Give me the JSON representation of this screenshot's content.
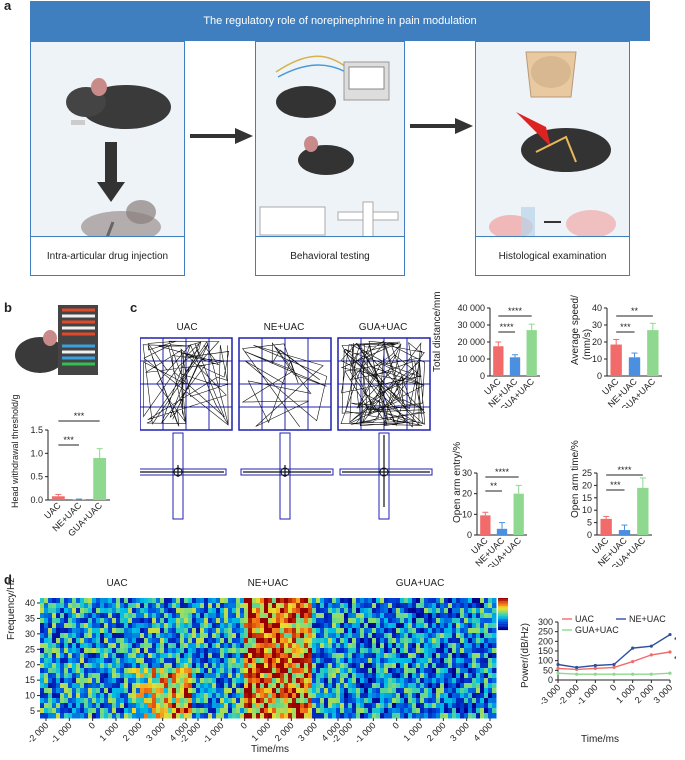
{
  "panel_labels": {
    "a": "a",
    "b": "b",
    "c": "c",
    "d": "d"
  },
  "panel_a": {
    "banner": "The regulatory role of norepinephrine in pain modulation",
    "steps": [
      {
        "caption": "Intra-articular drug injection"
      },
      {
        "caption": "Behavioral testing"
      },
      {
        "caption": "Histological examination"
      }
    ]
  },
  "panel_b": {
    "ylabel": "Head withdrawal threshold/g",
    "colors": [
      "#f26b6b",
      "#4a8fe0",
      "#8fd88f"
    ],
    "chart_data": {
      "type": "bar",
      "categories": [
        "UAC",
        "NE+UAC",
        "GUA+UAC"
      ],
      "values": [
        0.08,
        0.01,
        0.9
      ],
      "errors": [
        0.04,
        0.01,
        0.2
      ],
      "ylim": [
        0,
        1.5
      ],
      "yticks": [
        "0.0",
        "0.5",
        "1.0",
        "1.5"
      ],
      "ylabel": "Head withdrawal threshold/g",
      "significance": [
        "***",
        "***"
      ]
    }
  },
  "panel_c": {
    "track_titles": [
      "UAC",
      "NE+UAC",
      "GUA+UAC"
    ],
    "charts": [
      {
        "type": "bar",
        "ylabel": "Total distance/mm",
        "categories": [
          "UAC",
          "NE+UAC",
          "GUA+UAC"
        ],
        "values": [
          17500,
          11000,
          27000
        ],
        "errors": [
          2500,
          1500,
          3500
        ],
        "ylim": [
          0,
          40000
        ],
        "yticks": [
          "0",
          "10 000",
          "20 000",
          "30 000",
          "40 000"
        ],
        "significance": [
          "****",
          "****"
        ]
      },
      {
        "type": "bar",
        "ylabel": "Average speed/ (mm/s)",
        "categories": [
          "UAC",
          "NE+UAC",
          "GUA+UAC"
        ],
        "values": [
          18.5,
          11,
          27
        ],
        "errors": [
          3,
          2.5,
          4
        ],
        "ylim": [
          0,
          40
        ],
        "yticks": [
          "0",
          "10",
          "20",
          "30",
          "40"
        ],
        "significance": [
          "***",
          "**"
        ]
      },
      {
        "type": "bar",
        "ylabel": "Open arm entry/%",
        "categories": [
          "UAC",
          "NE+UAC",
          "GUA+UAC"
        ],
        "values": [
          9.5,
          3,
          20
        ],
        "errors": [
          1.5,
          3,
          4
        ],
        "ylim": [
          0,
          30
        ],
        "yticks": [
          "0",
          "10",
          "20",
          "30"
        ],
        "significance": [
          "**",
          "****"
        ]
      },
      {
        "type": "bar",
        "ylabel": "Open arm time/%",
        "categories": [
          "UAC",
          "NE+UAC",
          "GUA+UAC"
        ],
        "values": [
          6.5,
          2,
          19
        ],
        "errors": [
          1,
          2,
          4
        ],
        "ylim": [
          0,
          25
        ],
        "yticks": [
          "0",
          "5",
          "10",
          "15",
          "20",
          "25"
        ],
        "significance": [
          "***",
          "****"
        ]
      }
    ]
  },
  "panel_d": {
    "heatmap_titles": [
      "UAC",
      "NE+UAC",
      "GUA+UAC"
    ],
    "ylabel": "Frequency/Hz",
    "yticks": [
      "5",
      "10",
      "15",
      "20",
      "25",
      "30",
      "35",
      "40"
    ],
    "xticks": [
      "-2 000",
      "-1 000",
      "0",
      "1 000",
      "2 000",
      "3 000",
      "4 000"
    ],
    "xlabel": "Time/ms",
    "line_chart": {
      "type": "line",
      "ylabel": "Power/(dB/Hz)",
      "xlabel": "Time/ms",
      "x": [
        -3000,
        -2000,
        -1000,
        0,
        1000,
        2000,
        3000
      ],
      "xticks": [
        "-3 000",
        "-2 000",
        "-1 000",
        "0",
        "1 000",
        "2 000",
        "3 000"
      ],
      "yticks": [
        "0",
        "50",
        "100",
        "150",
        "200",
        "250",
        "300"
      ],
      "ylim": [
        0,
        300
      ],
      "series": [
        {
          "name": "UAC",
          "color": "#f26b6b",
          "values": [
            60,
            55,
            60,
            65,
            95,
            130,
            145
          ]
        },
        {
          "name": "NE+UAC",
          "color": "#2f4f9f",
          "values": [
            80,
            65,
            75,
            80,
            165,
            175,
            235
          ]
        },
        {
          "name": "GUA+UAC",
          "color": "#8fd88f",
          "values": [
            35,
            30,
            30,
            30,
            30,
            30,
            35
          ]
        }
      ],
      "significance": [
        "**",
        "***"
      ]
    }
  }
}
